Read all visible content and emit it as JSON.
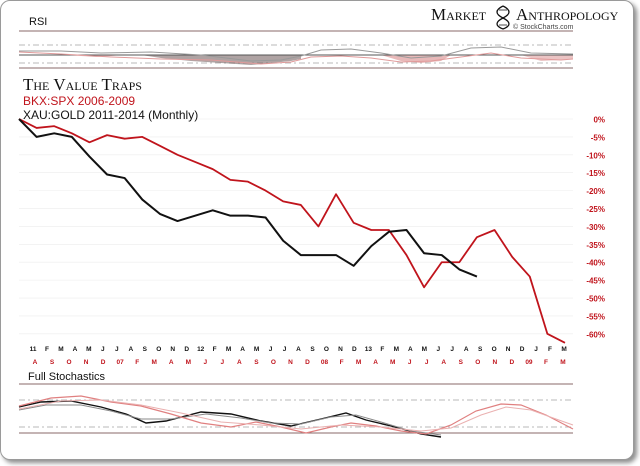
{
  "brand": {
    "name_left": "Market",
    "name_right": "Anthropology",
    "sub": "© StockCharts.com",
    "icon": "dna-helix-icon"
  },
  "panels": {
    "top_label": "RSI",
    "bottom_label": "Full Stochastics"
  },
  "colors": {
    "bkx": "#c0141c",
    "xau": "#111111",
    "accent": "#c0141c",
    "grid": "#b0b0b0"
  },
  "chart_data": [
    {
      "type": "line",
      "title": "The Value Traps",
      "legend": [
        {
          "label": "BKX:SPX 2006-2009",
          "color": "#c0141c"
        },
        {
          "label": "XAU:GOLD 2011-2014 (Monthly)",
          "color": "#111111"
        }
      ],
      "yaxis_side": "right",
      "ylim": [
        -62,
        0
      ],
      "y_ticks": [
        "0%",
        "-5%",
        "-10%",
        "-15%",
        "-20%",
        "-25%",
        "-30%",
        "-35%",
        "-40%",
        "-45%",
        "-50%",
        "-55%",
        "-60%"
      ],
      "y_tick_values": [
        0,
        -5,
        -10,
        -15,
        -20,
        -25,
        -30,
        -35,
        -40,
        -45,
        -50,
        -55,
        -60
      ],
      "x_ticks_top": [
        "11",
        "F",
        "M",
        "A",
        "M",
        "J",
        "J",
        "A",
        "S",
        "O",
        "N",
        "D",
        "12",
        "F",
        "M",
        "A",
        "M",
        "J",
        "J",
        "A",
        "S",
        "O",
        "N",
        "D",
        "13",
        "F",
        "M",
        "A",
        "M",
        "J",
        "J",
        "A",
        "S",
        "O",
        "N",
        "D",
        "J",
        "F",
        "M"
      ],
      "x_ticks_bottom": [
        "A",
        "S",
        "O",
        "N",
        "D",
        "07",
        "F",
        "M",
        "A",
        "M",
        "J",
        "J",
        "A",
        "S",
        "O",
        "N",
        "D",
        "08",
        "F",
        "M",
        "A",
        "M",
        "J",
        "J",
        "A",
        "S",
        "O",
        "N",
        "D",
        "09",
        "F",
        "M"
      ],
      "series": [
        {
          "name": "BKX:SPX 2006-2009",
          "color": "#c0141c",
          "x": [
            0,
            1,
            2,
            3,
            4,
            5,
            6,
            7,
            8,
            9,
            10,
            11,
            12,
            13,
            14,
            15,
            16,
            17,
            18,
            19,
            20,
            21,
            22,
            23,
            24,
            25,
            26,
            27,
            28,
            29,
            30,
            31
          ],
          "values": [
            0,
            -2.5,
            -2,
            -4,
            -6.5,
            -4.5,
            -5.5,
            -5,
            -7.5,
            -10,
            -12,
            -14,
            -17,
            -17.5,
            -20,
            -23,
            -24,
            -30,
            -21,
            -29,
            -31,
            -31,
            -38,
            -47,
            -40,
            -40,
            -33,
            -31,
            -38.5,
            -44,
            -60,
            -62.5
          ]
        },
        {
          "name": "XAU:GOLD 2011-2014 (Monthly)",
          "color": "#111111",
          "x": [
            0,
            1,
            2,
            3,
            4,
            5,
            6,
            7,
            8,
            9,
            10,
            11,
            12,
            13,
            14,
            15,
            16,
            17,
            18,
            19,
            20,
            21,
            22,
            23,
            24,
            25,
            26
          ],
          "values": [
            0,
            -5,
            -4,
            -5,
            -10.5,
            -15.5,
            -16.5,
            -22.5,
            -26.5,
            -28.5,
            -27,
            -25.5,
            -27,
            -27,
            -27.5,
            -34,
            -38,
            -38,
            -38,
            -41,
            -35.5,
            -31.5,
            -31,
            -37.5,
            -38,
            -42,
            -44
          ]
        }
      ]
    }
  ]
}
